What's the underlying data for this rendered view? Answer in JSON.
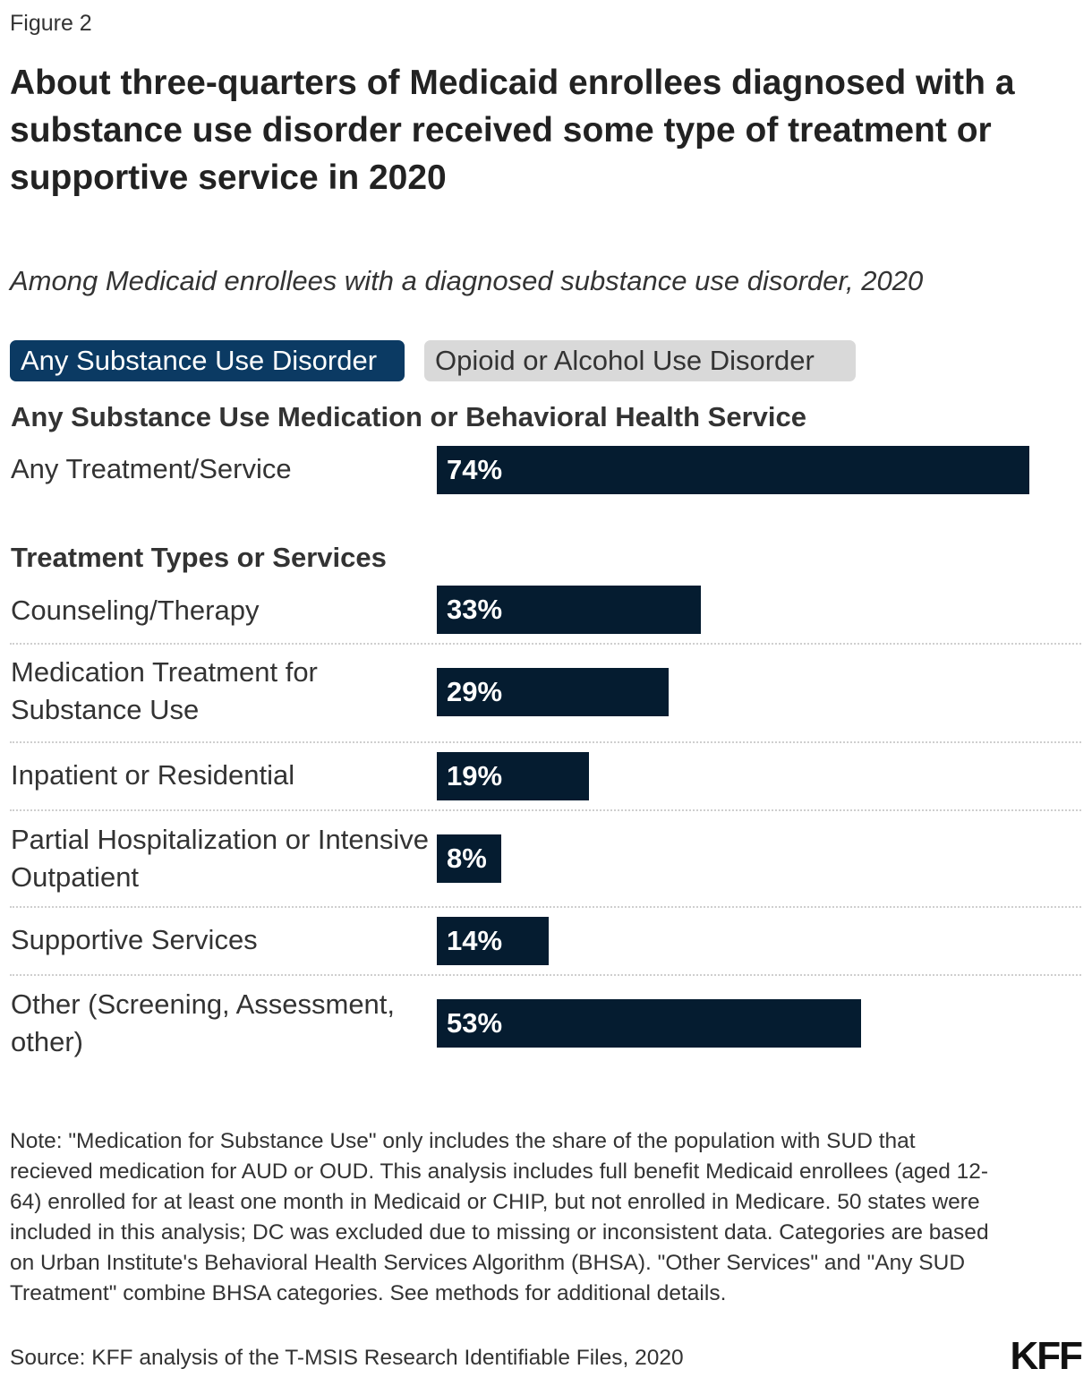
{
  "figure_label": "Figure 2",
  "title": "About three-quarters of Medicaid enrollees diagnosed with a substance use disorder received some type of treatment or supportive service in 2020",
  "subtitle": "Among Medicaid enrollees with a diagnosed substance use disorder, 2020",
  "tabs": [
    {
      "label": "Any Substance Use Disorder",
      "active": true
    },
    {
      "label": "Opioid or Alcohol Use Disorder",
      "active": false
    }
  ],
  "colors": {
    "bar": "#051c30",
    "tab_active": "#0b3a63",
    "tab_inactive": "#d9d9d9"
  },
  "chart_data": {
    "type": "bar",
    "orientation": "horizontal",
    "unit": "%",
    "xlim": [
      0,
      74
    ],
    "grid": false,
    "groups": [
      {
        "heading": "Any Substance Use Medication or Behavioral Health Service",
        "rows": [
          {
            "label": "Any Treatment/Service",
            "value": 74,
            "value_label": "74%"
          }
        ]
      },
      {
        "heading": "Treatment Types or Services",
        "rows": [
          {
            "label": "Counseling/Therapy",
            "value": 33,
            "value_label": "33%"
          },
          {
            "label": "Medication Treatment for Substance Use",
            "value": 29,
            "value_label": "29%"
          },
          {
            "label": "Inpatient or Residential",
            "value": 19,
            "value_label": "19%"
          },
          {
            "label": "Partial Hospitalization or Intensive Outpatient",
            "value": 8,
            "value_label": "8%"
          },
          {
            "label": "Supportive Services",
            "value": 14,
            "value_label": "14%"
          },
          {
            "label": "Other (Screening, Assessment, other)",
            "value": 53,
            "value_label": "53%"
          }
        ]
      }
    ]
  },
  "note": "Note: \"Medication for Substance Use\" only includes the share of the population with SUD that recieved medication for AUD or OUD. This analysis includes full benefit Medicaid enrollees (aged 12-64) enrolled for at least one month in Medicaid or CHIP, but not enrolled in Medicare. 50 states were included in this analysis; DC was excluded due to missing or inconsistent data. Categories are based on Urban Institute's Behavioral Health Services Algorithm (BHSA). \"Other Services\" and \"Any SUD Treatment\" combine BHSA categories. See methods for additional details.",
  "source": "Source: KFF analysis of the T-MSIS Research Identifiable Files, 2020",
  "logo_text": "KFF"
}
